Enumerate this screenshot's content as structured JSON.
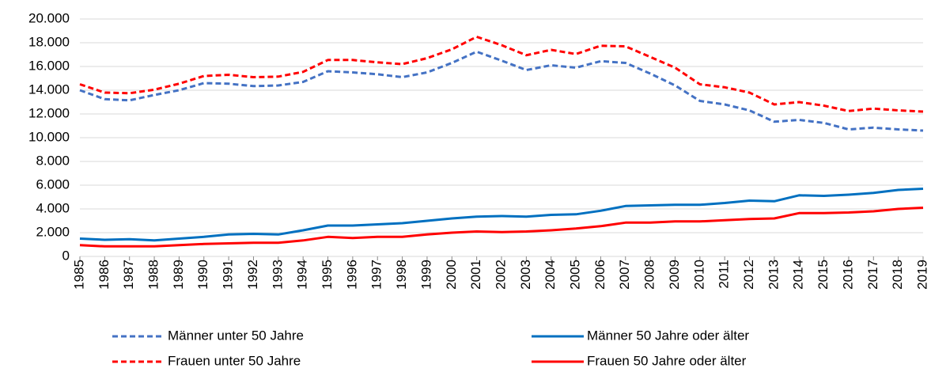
{
  "chart_data": {
    "type": "line",
    "categories": [
      "1985",
      "1986",
      "1987",
      "1988",
      "1989",
      "1990",
      "1991",
      "1992",
      "1993",
      "1994",
      "1995",
      "1996",
      "1997",
      "1998",
      "1999",
      "2000",
      "2001",
      "2002",
      "2003",
      "2004",
      "2005",
      "2006",
      "2007",
      "2008",
      "2009",
      "2010",
      "2011",
      "2012",
      "2013",
      "2014",
      "2015",
      "2016",
      "2017",
      "2018",
      "2019"
    ],
    "series": [
      {
        "name": "Männer unter 50 Jahre",
        "color": "#4472c4",
        "dashed": true,
        "values": [
          14000,
          13250,
          13150,
          13600,
          14000,
          14600,
          14550,
          14350,
          14400,
          14700,
          15600,
          15500,
          15350,
          15100,
          15500,
          16300,
          17250,
          16500,
          15700,
          16100,
          15900,
          16450,
          16300,
          15400,
          14400,
          13100,
          12800,
          12300,
          11350,
          11500,
          11250,
          10700,
          10850,
          10700,
          10600
        ]
      },
      {
        "name": "Männer 50 Jahre oder älter",
        "color": "#0070c0",
        "dashed": false,
        "values": [
          1500,
          1400,
          1450,
          1350,
          1500,
          1650,
          1850,
          1900,
          1850,
          2200,
          2600,
          2600,
          2700,
          2800,
          3000,
          3200,
          3350,
          3400,
          3350,
          3500,
          3550,
          3850,
          4250,
          4300,
          4350,
          4350,
          4500,
          4700,
          4650,
          5150,
          5100,
          5200,
          5350,
          5600,
          5700
        ]
      },
      {
        "name": "Frauen unter 50 Jahre",
        "color": "#ff0000",
        "dashed": true,
        "values": [
          14500,
          13800,
          13750,
          14050,
          14550,
          15200,
          15300,
          15100,
          15150,
          15550,
          16550,
          16550,
          16350,
          16200,
          16700,
          17450,
          18500,
          17800,
          16950,
          17400,
          17050,
          17750,
          17700,
          16800,
          15900,
          14500,
          14250,
          13800,
          12800,
          13000,
          12700,
          12250,
          12450,
          12300,
          12200
        ]
      },
      {
        "name": "Frauen 50 Jahre oder älter",
        "color": "#ff0000",
        "dashed": false,
        "values": [
          950,
          850,
          850,
          850,
          950,
          1050,
          1100,
          1150,
          1150,
          1350,
          1650,
          1550,
          1650,
          1650,
          1850,
          2000,
          2100,
          2050,
          2100,
          2200,
          2350,
          2550,
          2850,
          2850,
          2950,
          2950,
          3050,
          3150,
          3200,
          3650,
          3650,
          3700,
          3800,
          4000,
          4100
        ]
      }
    ],
    "ylim": [
      0,
      20000
    ],
    "yticks": [
      0,
      {
        "value": 2000,
        "label": "2.000"
      },
      {
        "value": 4000,
        "label": "4.000"
      },
      {
        "value": 6000,
        "label": "6.000"
      },
      {
        "value": 8000,
        "label": "8.000"
      },
      {
        "value": 10000,
        "label": "10.000"
      },
      {
        "value": 12000,
        "label": "12.000"
      },
      {
        "value": 14000,
        "label": "14.000"
      },
      {
        "value": 16000,
        "label": "16.000"
      },
      {
        "value": 18000,
        "label": "18.000"
      },
      {
        "value": 20000,
        "label": "20.000"
      }
    ],
    "grid": true,
    "legend": "bottom"
  }
}
